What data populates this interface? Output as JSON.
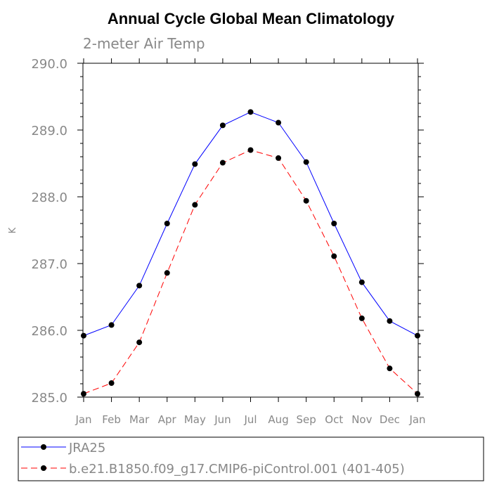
{
  "chart_data": {
    "type": "line",
    "title": "Annual Cycle Global Mean Climatology",
    "subtitle": "2-meter Air Temp",
    "xlabel": "",
    "ylabel": "K",
    "ylim": [
      285.0,
      290.0
    ],
    "yticks": [
      "285.0",
      "286.0",
      "287.0",
      "288.0",
      "289.0",
      "290.0"
    ],
    "categories": [
      "Jan",
      "Feb",
      "Mar",
      "Apr",
      "May",
      "Jun",
      "Jul",
      "Aug",
      "Sep",
      "Oct",
      "Nov",
      "Dec",
      "Jan"
    ],
    "series": [
      {
        "name": "JRA25",
        "color": "#0000ff",
        "style": "solid",
        "values": [
          285.92,
          286.08,
          286.67,
          287.6,
          288.49,
          289.07,
          289.27,
          289.11,
          288.52,
          287.6,
          286.72,
          286.14,
          285.92
        ]
      },
      {
        "name": "b.e21.B1850.f09_g17.CMIP6-piControl.001 (401-405)",
        "color": "#ff0000",
        "style": "dashed",
        "values": [
          285.05,
          285.21,
          285.82,
          286.86,
          287.88,
          288.51,
          288.7,
          288.58,
          287.94,
          287.11,
          286.18,
          285.43,
          285.05
        ]
      }
    ],
    "legend_position": "bottom"
  }
}
